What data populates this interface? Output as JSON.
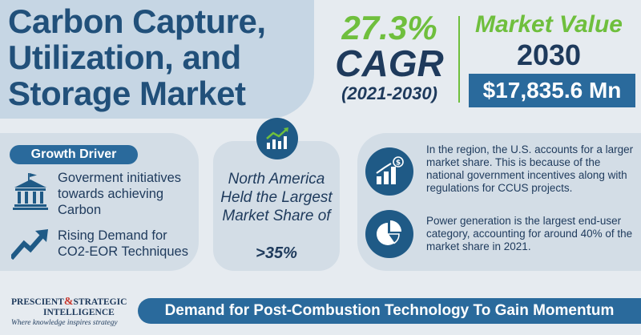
{
  "title": {
    "line1": "Carbon Capture,",
    "line2": "Utilization, and",
    "line3": "Storage Market"
  },
  "cagr": {
    "value": "27.3%",
    "label": "CAGR",
    "period": "(2021-2030)"
  },
  "market_value": {
    "label": "Market Value",
    "year": "2030",
    "amount": "$17,835.6 Mn"
  },
  "growth_driver": {
    "heading": "Growth Driver",
    "items": [
      {
        "text": "Goverment initiatives towards achieving Carbon",
        "icon": "bank-icon"
      },
      {
        "text": "Rising Demand for CO2-EOR Techniques",
        "icon": "trend-up-arrow-icon"
      }
    ]
  },
  "region": {
    "text": "North America Held the Largest Market Share of",
    "share": ">35%",
    "icon": "growth-chart-icon"
  },
  "insights": [
    {
      "text": "In the region, the U.S. accounts for a larger market share. This is because of the national government incentives along with regulations for CCUS projects.",
      "icon": "bar-chart-dollar-icon"
    },
    {
      "text": "Power generation is the largest end-user category, accounting for around 40% of the market share in 2021.",
      "icon": "pie-chart-icon"
    }
  ],
  "logo": {
    "name_part1": "PRESCIENT",
    "ampersand": "&",
    "name_part2": "STRATEGIC",
    "name_part3": "INTELLIGENCE",
    "tagline": "Where knowledge inspires strategy"
  },
  "banner": {
    "text": "Demand for Post-Combustion Technology To Gain Momentum"
  },
  "colors": {
    "primary": "#2a6a9c",
    "dark": "#1e3a5c",
    "accent_green": "#6fbf3d",
    "panel": "#d3dde6",
    "background": "#e6ebf0"
  }
}
